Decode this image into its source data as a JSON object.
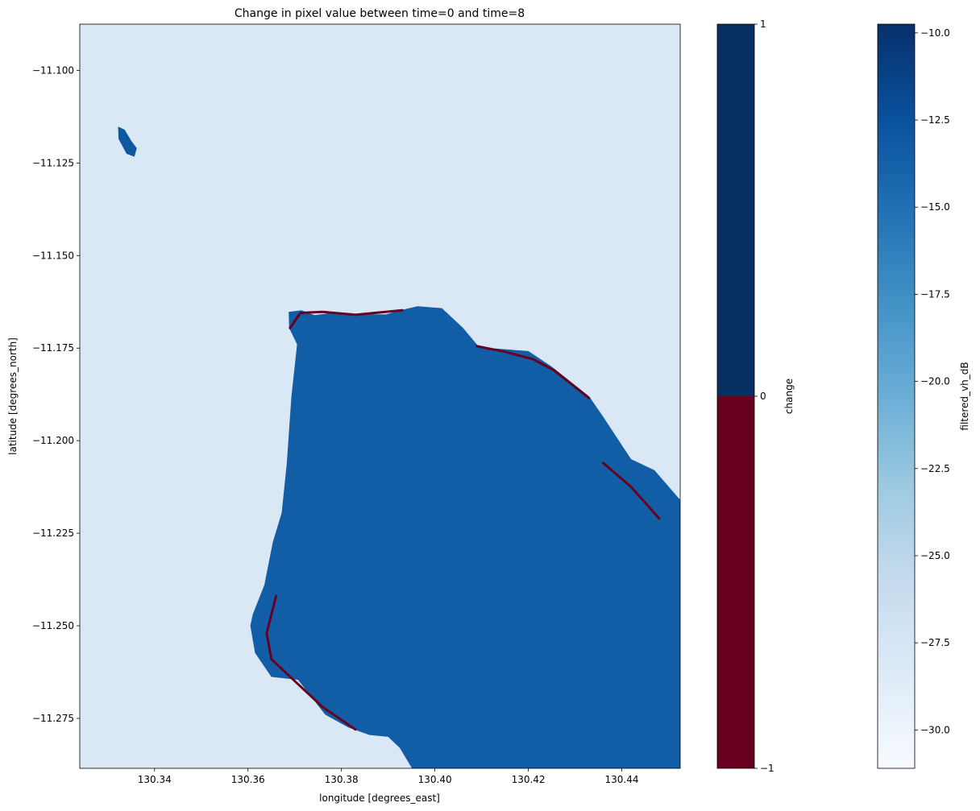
{
  "chart_data": {
    "type": "heatmap",
    "title": "Change in pixel value between time=0 and time=8",
    "xlabel": "longitude [degrees_east]",
    "ylabel": "latitude [degrees_north]",
    "xlim": [
      130.324,
      130.4525
    ],
    "ylim": [
      -11.2885,
      -11.0875
    ],
    "x_ticks": [
      130.34,
      130.36,
      130.38,
      130.4,
      130.42,
      130.44
    ],
    "x_tick_labels": [
      "130.34",
      "130.36",
      "130.38",
      "130.40",
      "130.42",
      "130.44"
    ],
    "y_ticks": [
      -11.1,
      -11.125,
      -11.15,
      -11.175,
      -11.2,
      -11.225,
      -11.25,
      -11.275
    ],
    "y_tick_labels": [
      "−11.100",
      "−11.125",
      "−11.150",
      "−11.175",
      "−11.200",
      "−11.225",
      "−11.250",
      "−11.275"
    ],
    "grid": false,
    "layers": [
      {
        "name": "filtered_vh_dB",
        "cmap": "Blues",
        "background_value": -28,
        "land_value": -13.5,
        "island_value": -13,
        "land_polygon": [
          [
            130.3687,
            -11.1652
          ],
          [
            130.3715,
            -11.1648
          ],
          [
            130.3742,
            -11.1661
          ],
          [
            130.3775,
            -11.1656
          ],
          [
            130.3824,
            -11.1658
          ],
          [
            130.3895,
            -11.1659
          ],
          [
            130.3935,
            -11.1645
          ],
          [
            130.3963,
            -11.1637
          ],
          [
            130.4015,
            -11.1642
          ],
          [
            130.406,
            -11.1695
          ],
          [
            130.4095,
            -11.1748
          ],
          [
            130.42,
            -11.1758
          ],
          [
            130.425,
            -11.18
          ],
          [
            130.433,
            -11.188
          ],
          [
            130.436,
            -11.1935
          ],
          [
            130.442,
            -11.205
          ],
          [
            130.447,
            -11.208
          ],
          [
            130.4525,
            -11.216
          ],
          [
            130.4525,
            -11.2885
          ],
          [
            130.3951,
            -11.2885
          ],
          [
            130.3925,
            -11.283
          ],
          [
            130.39,
            -11.28
          ],
          [
            130.386,
            -11.2795
          ],
          [
            130.3815,
            -11.2775
          ],
          [
            130.3765,
            -11.274
          ],
          [
            130.3707,
            -11.2646
          ],
          [
            130.365,
            -11.2638
          ],
          [
            130.3615,
            -11.2573
          ],
          [
            130.3605,
            -11.25
          ],
          [
            130.361,
            -11.247
          ],
          [
            130.3635,
            -11.239
          ],
          [
            130.3653,
            -11.2275
          ],
          [
            130.3672,
            -11.2195
          ],
          [
            130.3683,
            -11.2062
          ],
          [
            130.3693,
            -11.188
          ],
          [
            130.3705,
            -11.174
          ],
          [
            130.3688,
            -11.1695
          ]
        ],
        "island_polygon": [
          [
            130.3322,
            -11.1152
          ],
          [
            130.3336,
            -11.116
          ],
          [
            130.335,
            -11.119
          ],
          [
            130.3362,
            -11.121
          ],
          [
            130.3357,
            -11.1233
          ],
          [
            130.334,
            -11.1225
          ],
          [
            130.3323,
            -11.1185
          ]
        ]
      },
      {
        "name": "change",
        "cmap": "RdBu",
        "value": -1,
        "description_of_value": "decrease along coastline",
        "color": "#67001f",
        "coast_segments": [
          [
            [
              130.369,
              -11.1696
            ],
            [
              130.3712,
              -11.1655
            ],
            [
              130.376,
              -11.1652
            ],
            [
              130.383,
              -11.166
            ],
            [
              130.393,
              -11.1648
            ]
          ],
          [
            [
              130.409,
              -11.1745
            ],
            [
              130.415,
              -11.176
            ],
            [
              130.421,
              -11.178
            ],
            [
              130.4255,
              -11.181
            ],
            [
              130.433,
              -11.1885
            ]
          ],
          [
            [
              130.366,
              -11.242
            ],
            [
              130.364,
              -11.252
            ],
            [
              130.365,
              -11.259
            ],
            [
              130.3705,
              -11.2655
            ],
            [
              130.376,
              -11.272
            ],
            [
              130.383,
              -11.278
            ]
          ],
          [
            [
              130.436,
              -11.206
            ],
            [
              130.442,
              -11.2125
            ],
            [
              130.448,
              -11.221
            ]
          ]
        ]
      }
    ],
    "colorbars": [
      {
        "label": "change",
        "type": "discrete",
        "range": [
          -1,
          1
        ],
        "ticks": [
          -1,
          0,
          1
        ],
        "tick_labels": [
          "−1",
          "0",
          "1"
        ],
        "segments": [
          {
            "from": -1,
            "to": 0,
            "color": "#67001f"
          },
          {
            "from": 0,
            "to": 1,
            "color": "#053061"
          }
        ]
      },
      {
        "label": "filtered_vh_dB",
        "type": "continuous",
        "cmap": "Blues",
        "range": [
          -31.1,
          -9.75
        ],
        "ticks": [
          -10.0,
          -12.5,
          -15.0,
          -17.5,
          -20.0,
          -22.5,
          -25.0,
          -27.5,
          -30.0
        ],
        "tick_labels": [
          "−10.0",
          "−12.5",
          "−15.0",
          "−17.5",
          "−20.0",
          "−22.5",
          "−25.0",
          "−27.5",
          "−30.0"
        ],
        "stops": [
          "#f7fbff",
          "#deebf7",
          "#c6dbef",
          "#9ecae1",
          "#6baed6",
          "#4292c6",
          "#2171b5",
          "#08519c",
          "#08306b"
        ]
      }
    ]
  }
}
